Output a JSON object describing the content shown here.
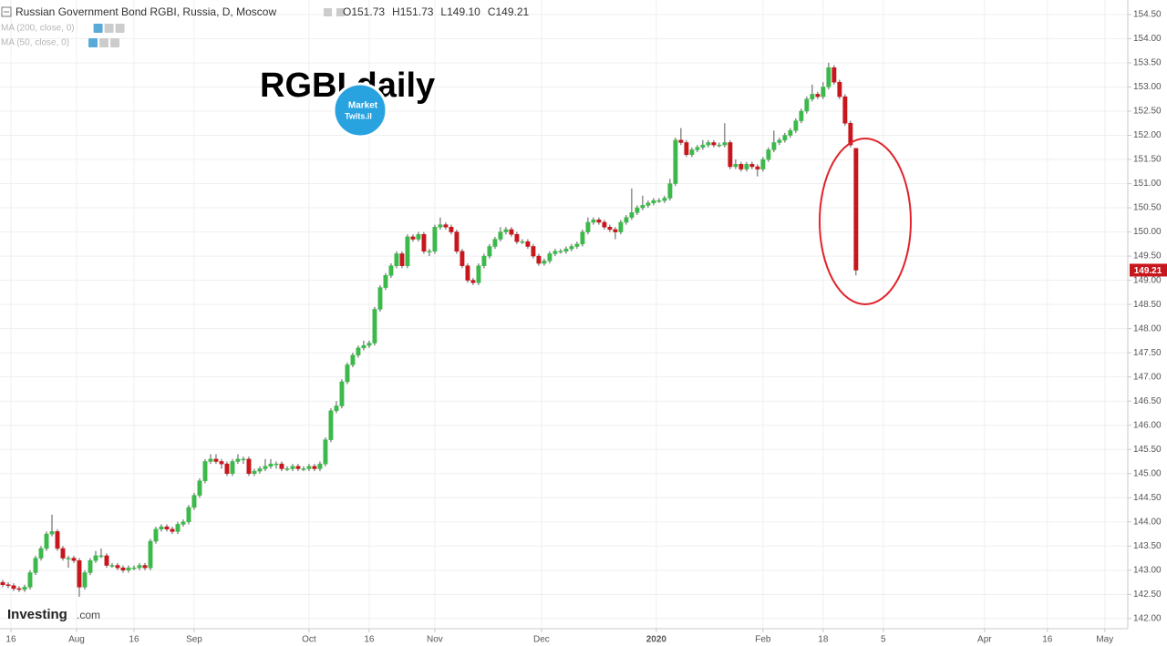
{
  "chart_data": {
    "type": "candlestick",
    "title": "Russian Government Bond RGBI, Russia, D, Moscow",
    "ohlc_labels": [
      "O151.73",
      "H151.73",
      "L149.10",
      "C149.21"
    ],
    "indicators": [
      "MA (200, close, 0)",
      "MA (50, close, 0)"
    ],
    "annotation": "RGBI daily",
    "logo_text": [
      "Market",
      "Twits.il"
    ],
    "watermark": [
      "Investing",
      ".com"
    ],
    "up_color": "#3cb94a",
    "down_color": "#c8161d",
    "grid": true,
    "xlim": [
      -0.5,
      205.7
    ],
    "ylim": [
      141.79,
      154.8
    ],
    "xticks": [
      {
        "value": 1.5,
        "label": "16"
      },
      {
        "value": 13.5,
        "label": "Aug"
      },
      {
        "value": 24,
        "label": "16"
      },
      {
        "value": 35,
        "label": "Sep"
      },
      {
        "value": 56,
        "label": "Oct"
      },
      {
        "value": 67,
        "label": "16"
      },
      {
        "value": 79,
        "label": "Nov"
      },
      {
        "value": 98.5,
        "label": "Dec"
      },
      {
        "value": 119.5,
        "label": "2020"
      },
      {
        "value": 139,
        "label": "Feb"
      },
      {
        "value": 150,
        "label": "18"
      },
      {
        "value": 161,
        "label": "5"
      },
      {
        "value": 179.5,
        "label": "Apr"
      },
      {
        "value": 191,
        "label": "16"
      },
      {
        "value": 201.5,
        "label": "May"
      }
    ],
    "yticks": [
      {
        "value": 142,
        "label": "142.00"
      },
      {
        "value": 142.5,
        "label": "142.50"
      },
      {
        "value": 143,
        "label": "143.00"
      },
      {
        "value": 143.5,
        "label": "143.50"
      },
      {
        "value": 144,
        "label": "144.00"
      },
      {
        "value": 144.5,
        "label": "144.50"
      },
      {
        "value": 145,
        "label": "145.00"
      },
      {
        "value": 145.5,
        "label": "145.50"
      },
      {
        "value": 146,
        "label": "146.00"
      },
      {
        "value": 146.5,
        "label": "146.50"
      },
      {
        "value": 147,
        "label": "147.00"
      },
      {
        "value": 147.5,
        "label": "147.50"
      },
      {
        "value": 148,
        "label": "148.00"
      },
      {
        "value": 148.5,
        "label": "148.50"
      },
      {
        "value": 149,
        "label": "149.00"
      },
      {
        "value": 149.5,
        "label": "149.50"
      },
      {
        "value": 150,
        "label": "150.00"
      },
      {
        "value": 150.5,
        "label": "150.50"
      },
      {
        "value": 151,
        "label": "151.00"
      },
      {
        "value": 151.5,
        "label": "151.50"
      },
      {
        "value": 152,
        "label": "152.00"
      },
      {
        "value": 152.5,
        "label": "152.50"
      },
      {
        "value": 153,
        "label": "153.00"
      },
      {
        "value": 153.5,
        "label": "153.50"
      },
      {
        "value": 154,
        "label": "154.00"
      },
      {
        "value": 154.5,
        "label": "154.50"
      }
    ],
    "last_price": {
      "value": 149.21,
      "label": "149.21"
    },
    "x": [
      0,
      1,
      2,
      3,
      4,
      5,
      6,
      7,
      8,
      9,
      10,
      11,
      12,
      13,
      14,
      15,
      16,
      17,
      18,
      19,
      20,
      21,
      22,
      23,
      24,
      25,
      26,
      27,
      28,
      29,
      30,
      31,
      32,
      33,
      34,
      35,
      36,
      37,
      38,
      39,
      40,
      41,
      42,
      43,
      44,
      45,
      46,
      47,
      48,
      49,
      50,
      51,
      52,
      53,
      54,
      55,
      56,
      57,
      58,
      59,
      60,
      61,
      62,
      63,
      64,
      65,
      66,
      67,
      68,
      69,
      70,
      71,
      72,
      73,
      74,
      75,
      76,
      77,
      78,
      79,
      80,
      81,
      82,
      83,
      84,
      85,
      86,
      87,
      88,
      89,
      90,
      91,
      92,
      93,
      94,
      95,
      96,
      97,
      98,
      99,
      100,
      101,
      102,
      103,
      104,
      105,
      106,
      107,
      108,
      109,
      110,
      111,
      112,
      113,
      114,
      115,
      116,
      117,
      118,
      119,
      120,
      121,
      122,
      123,
      124,
      125,
      126,
      127,
      128,
      129,
      130,
      131,
      132,
      133,
      134,
      135,
      136,
      137,
      138,
      139,
      140,
      141,
      142,
      143,
      144,
      145,
      146,
      147,
      148,
      149,
      150,
      151,
      152,
      153,
      154,
      155,
      156
    ],
    "open": [
      142.75,
      142.7,
      142.68,
      142.62,
      142.6,
      142.65,
      142.95,
      143.25,
      143.45,
      143.75,
      143.8,
      143.45,
      143.25,
      143.25,
      143.2,
      142.65,
      142.95,
      143.2,
      143.3,
      143.3,
      143.1,
      143.1,
      143.05,
      143.0,
      143.05,
      143.05,
      143.1,
      143.05,
      143.6,
      143.85,
      143.9,
      143.85,
      143.8,
      143.95,
      144.0,
      144.3,
      144.55,
      144.85,
      145.25,
      145.3,
      145.25,
      145.2,
      145.0,
      145.25,
      145.3,
      145.3,
      145.0,
      145.05,
      145.1,
      145.15,
      145.2,
      145.2,
      145.1,
      145.1,
      145.15,
      145.1,
      145.1,
      145.15,
      145.1,
      145.2,
      145.7,
      146.3,
      146.4,
      146.9,
      147.25,
      147.45,
      147.6,
      147.65,
      147.7,
      148.4,
      148.85,
      149.1,
      149.3,
      149.55,
      149.3,
      149.9,
      149.85,
      149.95,
      149.6,
      149.6,
      150.1,
      150.15,
      150.1,
      150.0,
      149.6,
      149.3,
      149.0,
      148.95,
      149.3,
      149.5,
      149.7,
      149.85,
      150.0,
      150.05,
      149.95,
      149.8,
      149.8,
      149.7,
      149.5,
      149.35,
      149.4,
      149.55,
      149.6,
      149.6,
      149.65,
      149.7,
      149.75,
      150.0,
      150.2,
      150.25,
      150.2,
      150.1,
      150.05,
      150.0,
      150.2,
      150.3,
      150.4,
      150.5,
      150.55,
      150.6,
      150.65,
      150.65,
      150.7,
      151.0,
      151.9,
      151.85,
      151.6,
      151.7,
      151.75,
      151.8,
      151.85,
      151.8,
      151.8,
      151.85,
      151.35,
      151.4,
      151.3,
      151.4,
      151.35,
      151.3,
      151.5,
      151.7,
      151.85,
      151.9,
      152.0,
      152.1,
      152.3,
      152.5,
      152.75,
      152.85,
      152.8,
      153.0,
      153.4,
      153.1,
      152.8,
      152.25,
      151.73
    ],
    "high": [
      142.8,
      142.75,
      142.73,
      142.67,
      142.7,
      143.0,
      143.3,
      143.5,
      143.8,
      144.15,
      143.85,
      143.5,
      143.3,
      143.3,
      143.25,
      143.0,
      143.25,
      143.4,
      143.45,
      143.35,
      143.15,
      143.15,
      143.1,
      143.1,
      143.1,
      143.15,
      143.15,
      143.65,
      143.9,
      143.95,
      143.95,
      143.9,
      144.0,
      144.05,
      144.35,
      144.6,
      144.9,
      145.3,
      145.4,
      145.4,
      145.3,
      145.25,
      145.3,
      145.4,
      145.35,
      145.35,
      145.1,
      145.15,
      145.3,
      145.3,
      145.25,
      145.25,
      145.15,
      145.2,
      145.2,
      145.15,
      145.2,
      145.2,
      145.25,
      145.75,
      146.35,
      146.5,
      146.95,
      147.3,
      147.5,
      147.65,
      147.75,
      147.75,
      148.45,
      148.9,
      149.15,
      149.35,
      149.6,
      149.6,
      149.95,
      149.95,
      150.0,
      150.0,
      149.65,
      150.15,
      150.3,
      150.2,
      150.15,
      150.05,
      149.65,
      149.35,
      149.05,
      149.35,
      149.55,
      149.75,
      149.9,
      150.1,
      150.1,
      150.1,
      150.0,
      149.85,
      149.85,
      149.75,
      149.55,
      149.45,
      149.6,
      149.65,
      149.65,
      149.7,
      149.75,
      149.8,
      150.05,
      150.3,
      150.3,
      150.3,
      150.25,
      150.15,
      150.1,
      150.25,
      150.35,
      150.9,
      150.55,
      150.75,
      150.65,
      150.7,
      150.7,
      150.75,
      151.1,
      151.95,
      152.15,
      151.9,
      151.75,
      151.8,
      151.9,
      151.9,
      151.9,
      151.85,
      152.25,
      151.9,
      151.5,
      151.45,
      151.45,
      151.45,
      151.4,
      151.55,
      151.75,
      152.1,
      151.95,
      152.05,
      152.15,
      152.35,
      152.55,
      152.8,
      153.05,
      152.9,
      153.1,
      153.5,
      153.45,
      153.15,
      152.85,
      152.3,
      151.73
    ],
    "low": [
      142.65,
      142.63,
      142.57,
      142.55,
      142.55,
      142.6,
      142.9,
      143.2,
      143.4,
      143.7,
      143.4,
      143.2,
      143.05,
      143.15,
      142.45,
      142.6,
      142.9,
      143.15,
      143.25,
      143.05,
      143.05,
      143.0,
      142.95,
      142.95,
      143.0,
      143.0,
      143.0,
      143.0,
      143.55,
      143.8,
      143.8,
      143.75,
      143.75,
      143.9,
      143.95,
      144.25,
      144.5,
      144.8,
      145.2,
      145.2,
      145.1,
      144.95,
      144.95,
      145.2,
      145.2,
      144.95,
      144.95,
      145.0,
      145.05,
      145.1,
      145.1,
      145.05,
      145.05,
      145.05,
      145.05,
      145.05,
      145.05,
      145.05,
      145.05,
      145.15,
      145.65,
      146.25,
      146.35,
      146.85,
      147.2,
      147.4,
      147.55,
      147.6,
      147.65,
      148.35,
      148.8,
      149.05,
      149.25,
      149.25,
      149.25,
      149.8,
      149.8,
      149.55,
      149.5,
      149.55,
      150.05,
      150.05,
      149.95,
      149.55,
      149.25,
      148.95,
      148.9,
      148.9,
      149.25,
      149.45,
      149.65,
      149.8,
      149.95,
      149.9,
      149.75,
      149.75,
      149.65,
      149.45,
      149.3,
      149.3,
      149.35,
      149.5,
      149.55,
      149.55,
      149.6,
      149.65,
      149.7,
      149.95,
      150.15,
      150.15,
      150.05,
      150.0,
      149.85,
      149.95,
      150.15,
      150.25,
      150.35,
      150.45,
      150.5,
      150.55,
      150.6,
      150.6,
      150.65,
      150.95,
      151.8,
      151.55,
      151.55,
      151.65,
      151.7,
      151.75,
      151.75,
      151.75,
      151.75,
      151.3,
      151.3,
      151.25,
      151.25,
      151.3,
      151.15,
      151.25,
      151.45,
      151.65,
      151.8,
      151.85,
      151.95,
      152.05,
      152.25,
      152.45,
      152.7,
      152.75,
      152.75,
      152.95,
      153.05,
      152.75,
      152.2,
      151.75,
      149.1
    ],
    "close": [
      142.7,
      142.68,
      142.62,
      142.6,
      142.65,
      142.95,
      143.25,
      143.45,
      143.75,
      143.8,
      143.45,
      143.25,
      143.25,
      143.2,
      142.65,
      142.95,
      143.2,
      143.3,
      143.3,
      143.1,
      143.1,
      143.05,
      143.0,
      143.05,
      143.05,
      143.1,
      143.05,
      143.6,
      143.85,
      143.9,
      143.85,
      143.8,
      143.95,
      144.0,
      144.3,
      144.55,
      144.85,
      145.25,
      145.3,
      145.25,
      145.2,
      145.0,
      145.25,
      145.3,
      145.3,
      145.0,
      145.05,
      145.1,
      145.15,
      145.2,
      145.2,
      145.1,
      145.1,
      145.15,
      145.1,
      145.1,
      145.15,
      145.1,
      145.2,
      145.7,
      146.3,
      146.4,
      146.9,
      147.25,
      147.45,
      147.6,
      147.65,
      147.7,
      148.4,
      148.85,
      149.1,
      149.3,
      149.55,
      149.3,
      149.9,
      149.85,
      149.95,
      149.6,
      149.6,
      150.1,
      150.15,
      150.1,
      150.0,
      149.6,
      149.3,
      149.0,
      148.95,
      149.3,
      149.5,
      149.7,
      149.85,
      150.0,
      150.05,
      149.95,
      149.8,
      149.8,
      149.7,
      149.5,
      149.35,
      149.4,
      149.55,
      149.6,
      149.6,
      149.65,
      149.7,
      149.75,
      150.0,
      150.2,
      150.25,
      150.2,
      150.1,
      150.05,
      150.0,
      150.2,
      150.3,
      150.4,
      150.5,
      150.55,
      150.6,
      150.65,
      150.65,
      150.7,
      151.0,
      151.9,
      151.85,
      151.6,
      151.7,
      151.75,
      151.8,
      151.85,
      151.8,
      151.8,
      151.85,
      151.35,
      151.4,
      151.3,
      151.4,
      151.35,
      151.3,
      151.5,
      151.7,
      151.85,
      151.9,
      152.0,
      152.1,
      152.3,
      152.5,
      152.75,
      152.85,
      152.8,
      153.0,
      153.4,
      153.1,
      152.8,
      152.25,
      151.8,
      149.21
    ]
  }
}
